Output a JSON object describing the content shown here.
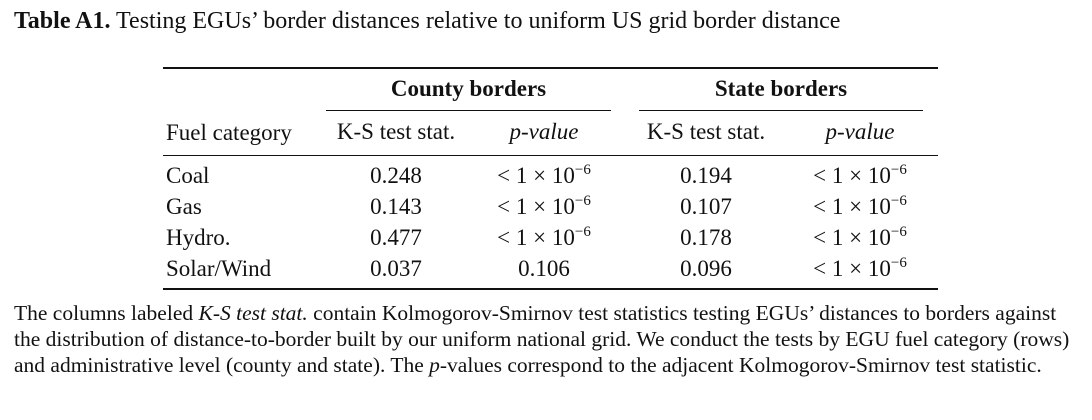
{
  "caption": {
    "label": "Table A1.",
    "text": " Testing EGUs’ border distances relative to uniform US grid border distance"
  },
  "table": {
    "groups": [
      "County borders",
      "State borders"
    ],
    "headers": [
      "Fuel category",
      "K-S test stat.",
      "p-value",
      "K-S test stat.",
      "p-value"
    ],
    "rows": [
      {
        "fuel": "Coal",
        "county_ks": "0.248",
        "county_p": "< 1 × 10",
        "county_p_exp": "−6",
        "state_ks": "0.194",
        "state_p": "< 1 × 10",
        "state_p_exp": "−6"
      },
      {
        "fuel": "Gas",
        "county_ks": "0.143",
        "county_p": "< 1 × 10",
        "county_p_exp": "−6",
        "state_ks": "0.107",
        "state_p": "< 1 × 10",
        "state_p_exp": "−6"
      },
      {
        "fuel": "Hydro.",
        "county_ks": "0.477",
        "county_p": "< 1 × 10",
        "county_p_exp": "−6",
        "state_ks": "0.178",
        "state_p": "< 1 × 10",
        "state_p_exp": "−6"
      },
      {
        "fuel": "Solar/Wind",
        "county_ks": "0.037",
        "county_p": "0.106",
        "county_p_exp": "",
        "state_ks": "0.096",
        "state_p": "< 1 × 10",
        "state_p_exp": "−6"
      }
    ]
  },
  "note": {
    "part1": "The columns labeled ",
    "em1": "K-S test stat.",
    "part2": " contain Kolmogorov-Smirnov test statistics testing EGUs’ distances to borders against the distribution of distance-to-border built by our uniform national grid. We conduct the tests by EGU fuel category (rows) and administrative level (county and state). The ",
    "em2": "p",
    "part3": "-values correspond to the adjacent Kolmogorov-Smirnov test statistic."
  }
}
